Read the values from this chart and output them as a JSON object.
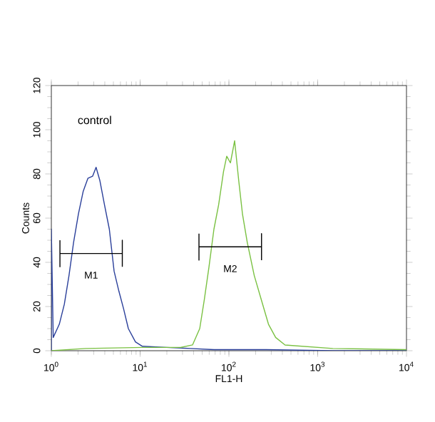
{
  "chart_data": {
    "type": "line",
    "xlabel": "FL1-H",
    "ylabel": "Counts",
    "log": "x",
    "grid": false,
    "marker": "none",
    "line_style": "solid",
    "xlim": [
      1,
      10000
    ],
    "ylim": [
      0,
      120
    ],
    "xticks": [
      {
        "value": 1,
        "label": "10$^{0}$"
      },
      {
        "value": 10,
        "label": "10$^{1}$"
      },
      {
        "value": 100,
        "label": "10$^{2}$"
      },
      {
        "value": 1000,
        "label": "10$^{3}$"
      },
      {
        "value": 10000,
        "label": "10$^{4}$"
      }
    ],
    "yticks": [
      0,
      20,
      40,
      60,
      80,
      100,
      120
    ],
    "annotations": [
      "control",
      "M1",
      "M2"
    ],
    "series": [
      {
        "color": "#2a3f9a",
        "x": [
          1,
          1,
          1.05,
          1.23,
          1.4,
          1.58,
          1.78,
          2.02,
          2.28,
          2.58,
          2.92,
          3.19,
          3.52,
          3.97,
          4.5,
          5.09,
          5.76,
          6.51,
          7.37,
          8.86,
          10.6,
          19.8,
          36.7,
          68,
          263,
          1480,
          10000
        ],
        "values": [
          0,
          55,
          6,
          12,
          21,
          34,
          49,
          62,
          72,
          78,
          79,
          83,
          77,
          66,
          55,
          36,
          27,
          19,
          10,
          4,
          2,
          1.5,
          1,
          0.5,
          0.5,
          0,
          0
        ]
      },
      {
        "color": "#7ac142",
        "x": [
          1,
          2.43,
          10.6,
          28.6,
          38.9,
          46.9,
          52.8,
          59.7,
          67.8,
          76.6,
          86.9,
          94.5,
          104,
          116,
          129,
          142,
          161,
          193,
          232,
          279,
          336,
          429,
          1480,
          10000
        ],
        "values": [
          0,
          1,
          1.5,
          1.5,
          2.6,
          10,
          23,
          38,
          55,
          66,
          81,
          88,
          85,
          95,
          77,
          62,
          49,
          34,
          23,
          12,
          6,
          2.6,
          1,
          0.5
        ]
      },
      {
        "color": "#000000",
        "x": [
          1.25,
          1.25,
          1.25,
          6.3,
          6.3,
          6.3
        ],
        "values": [
          50,
          38,
          44,
          44,
          50,
          38
        ]
      },
      {
        "color": "#000000",
        "x": [
          46,
          46,
          46,
          233,
          233,
          233
        ],
        "values": [
          53,
          41,
          47,
          47,
          53,
          41
        ]
      }
    ]
  }
}
